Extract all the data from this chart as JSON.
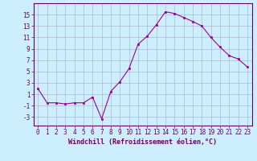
{
  "x": [
    0,
    1,
    2,
    3,
    4,
    5,
    6,
    7,
    8,
    9,
    10,
    11,
    12,
    13,
    14,
    15,
    16,
    17,
    18,
    19,
    20,
    21,
    22,
    23
  ],
  "y": [
    2.0,
    -0.5,
    -0.5,
    -0.7,
    -0.5,
    -0.5,
    0.5,
    -3.3,
    1.5,
    3.2,
    5.5,
    9.8,
    11.2,
    13.2,
    15.5,
    15.2,
    14.5,
    13.8,
    13.0,
    11.0,
    9.3,
    7.8,
    7.2,
    5.8
  ],
  "line_color": "#990099",
  "marker": "s",
  "marker_size": 1.8,
  "bg_color": "#cceeff",
  "grid_color": "#9999bb",
  "xlabel": "Windchill (Refroidissement éolien,°C)",
  "xlim": [
    -0.5,
    23.5
  ],
  "ylim": [
    -4.5,
    17
  ],
  "yticks": [
    -3,
    -1,
    1,
    3,
    5,
    7,
    9,
    11,
    13,
    15
  ],
  "xticks": [
    0,
    1,
    2,
    3,
    4,
    5,
    6,
    7,
    8,
    9,
    10,
    11,
    12,
    13,
    14,
    15,
    16,
    17,
    18,
    19,
    20,
    21,
    22,
    23
  ],
  "label_color": "#660066",
  "tick_color": "#660066",
  "spine_color": "#660066",
  "font_size": 5.5,
  "xlabel_fontsize": 6.0
}
